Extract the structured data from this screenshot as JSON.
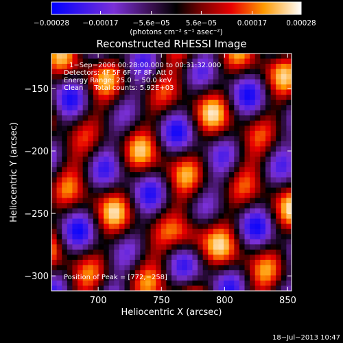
{
  "chart_data": {
    "type": "heatmap",
    "title": "Reconstructed RHESSI Image",
    "xlabel": "Heliocentric X (arcsec)",
    "ylabel": "Heliocentric Y (arcsec)",
    "xlim": [
      663,
      853
    ],
    "ylim": [
      -312,
      -122
    ],
    "x_ticks": [
      700,
      750,
      800,
      850
    ],
    "x_tick_labels": [
      "700",
      "750",
      "800",
      "850"
    ],
    "y_ticks": [
      -150,
      -200,
      -250,
      -300
    ],
    "y_tick_labels": [
      "−150",
      "−200",
      "−250",
      "−300"
    ],
    "colorbar": {
      "range": [
        -0.00028,
        0.00028
      ],
      "ticks": [
        -0.00028,
        -0.00017,
        -5.6e-05,
        5.6e-05,
        0.00017,
        0.00028
      ],
      "tick_labels": [
        "−0.00028",
        "−0.00017",
        "−5.6e−05",
        "5.6e−05",
        "0.00017",
        "0.00028"
      ],
      "unit_label": "(photons cm⁻² s⁻¹ asec⁻²)"
    },
    "annotations": [
      "1−Sep−2006 00:28:00.000 to 00:31:32.000",
      "Detectors: 4F 5F 6F 7F 8F, Att 0",
      "Energy Range: 25.0 − 50.0 keV",
      "Clean     Total counts: 5.92E+03"
    ],
    "peak_label": "Position of Peak = [772,−258]",
    "peak_x": 772,
    "peak_y": -258,
    "grid": false
  },
  "footer": {
    "date": "18−Jul−2013 10:47"
  }
}
